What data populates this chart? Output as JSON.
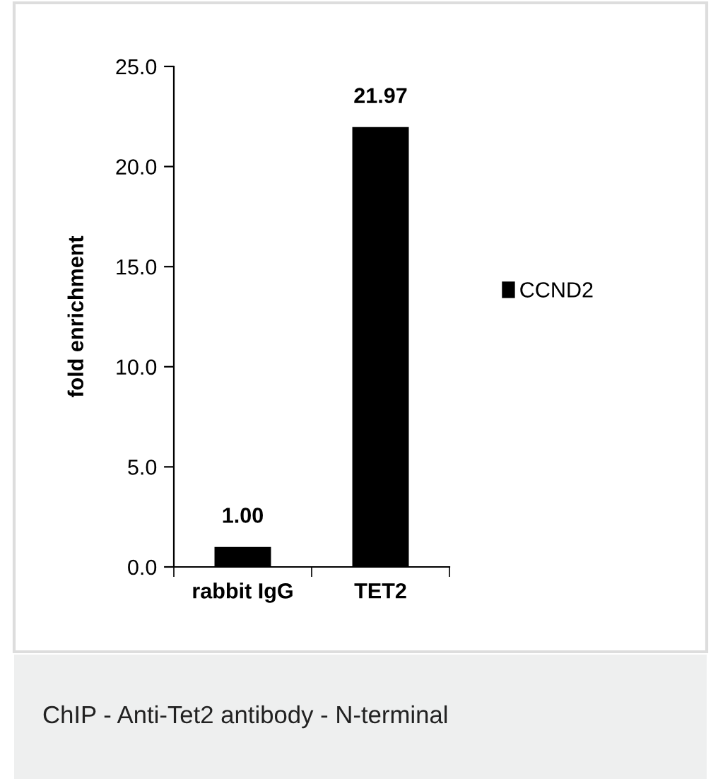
{
  "chart_data": {
    "type": "bar",
    "ylabel": "fold enrichment",
    "categories": [
      "rabbit IgG",
      "TET2"
    ],
    "series": [
      {
        "name": "CCND2",
        "color": "#000000",
        "values": [
          1.0,
          21.97
        ]
      }
    ],
    "ylim": [
      0,
      25
    ],
    "yticks": [
      {
        "value": 0,
        "label": "0.0"
      },
      {
        "value": 5,
        "label": "5.0"
      },
      {
        "value": 10,
        "label": "10.0"
      },
      {
        "value": 15,
        "label": "15.0"
      },
      {
        "value": 20,
        "label": "20.0"
      },
      {
        "value": 25,
        "label": "25.0"
      }
    ],
    "value_labels": [
      "1.00",
      "21.97"
    ],
    "legend": "right",
    "grid": false,
    "annotations": [
      "ChIP - Anti-Tet2 antibody - N-terminal"
    ]
  }
}
